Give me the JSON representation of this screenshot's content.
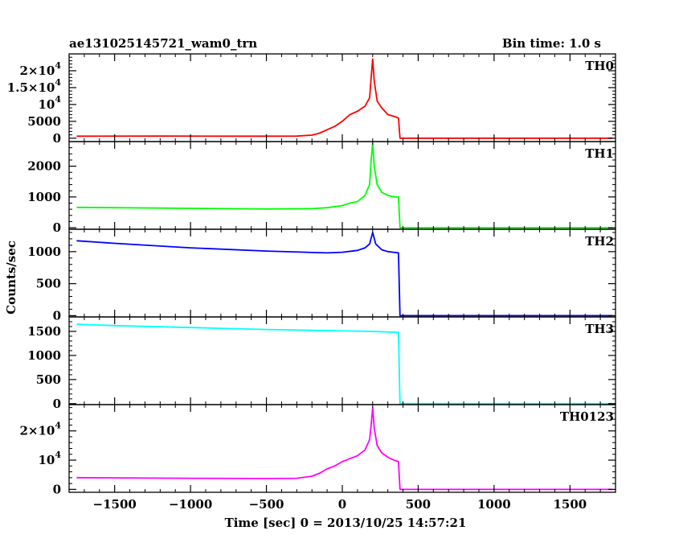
{
  "header": {
    "left_title": "ae131025145721_wam0_trn",
    "right_title": "Bin time: 1.0 s"
  },
  "chart_data": {
    "type": "line",
    "title": "ae131025145721_wam0_trn",
    "subtitle": "Bin time: 1.0 s",
    "xlabel": "Time [sec] 0 = 2013/10/25 14:57:21",
    "ylabel": "Counts/sec",
    "xlim": [
      -1800,
      1800
    ],
    "x_ticks": [
      -1500,
      -1000,
      -500,
      0,
      500,
      1000,
      1500
    ],
    "x_tick_labels": [
      "−1500",
      "−1000",
      "−500",
      "0",
      "500",
      "1000",
      "1500"
    ],
    "grid": false,
    "panels": [
      {
        "name": "TH0",
        "color": "#ff0000",
        "ylim": [
          -1000,
          25000
        ],
        "y_ticks": [
          0,
          5000,
          10000,
          15000,
          20000
        ],
        "y_tick_labels": [
          {
            "base": "0",
            "exp": ""
          },
          {
            "base": "5000",
            "exp": ""
          },
          {
            "base": "10",
            "exp": "4"
          },
          {
            "base": "1.5×10",
            "exp": "4"
          },
          {
            "base": "2×10",
            "exp": "4"
          }
        ],
        "points": [
          [
            -1750,
            600
          ],
          [
            -1200,
            620
          ],
          [
            -600,
            600
          ],
          [
            -300,
            620
          ],
          [
            -200,
            900
          ],
          [
            -150,
            1500
          ],
          [
            -100,
            2500
          ],
          [
            -50,
            3500
          ],
          [
            0,
            5000
          ],
          [
            50,
            7000
          ],
          [
            100,
            8000
          ],
          [
            150,
            9500
          ],
          [
            180,
            12000
          ],
          [
            190,
            18000
          ],
          [
            200,
            23500
          ],
          [
            210,
            17000
          ],
          [
            230,
            11000
          ],
          [
            260,
            9000
          ],
          [
            300,
            7000
          ],
          [
            340,
            6500
          ],
          [
            370,
            6000
          ],
          [
            380,
            0
          ],
          [
            1780,
            0
          ]
        ]
      },
      {
        "name": "TH1",
        "color": "#00ff00",
        "ylim": [
          -50,
          2800
        ],
        "y_ticks": [
          0,
          1000,
          2000
        ],
        "y_tick_labels": [
          {
            "base": "0",
            "exp": ""
          },
          {
            "base": "1000",
            "exp": ""
          },
          {
            "base": "2000",
            "exp": ""
          }
        ],
        "points": [
          [
            -1750,
            660
          ],
          [
            -1000,
            630
          ],
          [
            -500,
            610
          ],
          [
            -200,
            620
          ],
          [
            -100,
            650
          ],
          [
            0,
            720
          ],
          [
            50,
            800
          ],
          [
            100,
            850
          ],
          [
            150,
            1050
          ],
          [
            180,
            1400
          ],
          [
            190,
            2200
          ],
          [
            200,
            2750
          ],
          [
            210,
            2000
          ],
          [
            230,
            1400
          ],
          [
            260,
            1150
          ],
          [
            300,
            1050
          ],
          [
            340,
            1000
          ],
          [
            370,
            1000
          ],
          [
            380,
            0
          ],
          [
            1780,
            0
          ]
        ]
      },
      {
        "name": "TH2",
        "color": "#0000ff",
        "ylim": [
          -20,
          1350
        ],
        "y_ticks": [
          0,
          500,
          1000
        ],
        "y_tick_labels": [
          {
            "base": "0",
            "exp": ""
          },
          {
            "base": "500",
            "exp": ""
          },
          {
            "base": "1000",
            "exp": ""
          }
        ],
        "points": [
          [
            -1750,
            1170
          ],
          [
            -1500,
            1130
          ],
          [
            -1000,
            1060
          ],
          [
            -500,
            1010
          ],
          [
            -100,
            980
          ],
          [
            0,
            990
          ],
          [
            100,
            1020
          ],
          [
            150,
            1060
          ],
          [
            180,
            1120
          ],
          [
            200,
            1300
          ],
          [
            220,
            1120
          ],
          [
            260,
            1030
          ],
          [
            300,
            1000
          ],
          [
            370,
            980
          ],
          [
            380,
            0
          ],
          [
            1780,
            0
          ]
        ]
      },
      {
        "name": "TH3",
        "color": "#00ffff",
        "ylim": [
          -20,
          1800
        ],
        "y_ticks": [
          0,
          500,
          1000,
          1500
        ],
        "y_tick_labels": [
          {
            "base": "0",
            "exp": ""
          },
          {
            "base": "500",
            "exp": ""
          },
          {
            "base": "1000",
            "exp": ""
          },
          {
            "base": "1500",
            "exp": ""
          }
        ],
        "points": [
          [
            -1750,
            1650
          ],
          [
            -1500,
            1620
          ],
          [
            -1000,
            1580
          ],
          [
            -500,
            1540
          ],
          [
            0,
            1510
          ],
          [
            200,
            1500
          ],
          [
            370,
            1480
          ],
          [
            380,
            0
          ],
          [
            1780,
            0
          ]
        ]
      },
      {
        "name": "TH0123",
        "color": "#ff00ff",
        "ylim": [
          -1000,
          29000
        ],
        "y_ticks": [
          0,
          10000,
          20000
        ],
        "y_tick_labels": [
          {
            "base": "0",
            "exp": ""
          },
          {
            "base": "10",
            "exp": "4"
          },
          {
            "base": "2×10",
            "exp": "4"
          }
        ],
        "points": [
          [
            -1750,
            4000
          ],
          [
            -1000,
            3800
          ],
          [
            -500,
            3700
          ],
          [
            -300,
            3800
          ],
          [
            -200,
            4500
          ],
          [
            -150,
            5500
          ],
          [
            -100,
            7000
          ],
          [
            -50,
            8000
          ],
          [
            0,
            9500
          ],
          [
            50,
            10500
          ],
          [
            100,
            11500
          ],
          [
            150,
            13500
          ],
          [
            180,
            17000
          ],
          [
            190,
            22000
          ],
          [
            200,
            28000
          ],
          [
            210,
            21000
          ],
          [
            230,
            15000
          ],
          [
            260,
            12500
          ],
          [
            300,
            11000
          ],
          [
            340,
            10000
          ],
          [
            370,
            9500
          ],
          [
            380,
            0
          ],
          [
            1780,
            0
          ]
        ]
      }
    ]
  }
}
